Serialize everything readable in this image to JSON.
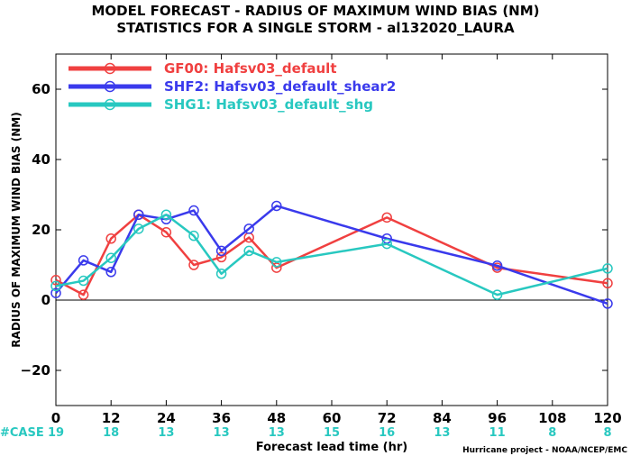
{
  "chart_data": {
    "type": "line",
    "title": "MODEL FORECAST - RADIUS OF MAXIMUM WIND BIAS (NM)",
    "subtitle": "STATISTICS FOR A SINGLE STORM - al132020_LAURA",
    "xlabel": "Forecast lead time (hr)",
    "ylabel": "RADIUS OF MAXIMUM WIND BIAS (NM)",
    "xlim": [
      0,
      120
    ],
    "ylim": [
      -30,
      70
    ],
    "xticks": [
      0,
      12,
      24,
      36,
      48,
      60,
      72,
      84,
      96,
      108,
      120
    ],
    "yticks": [
      -20,
      0,
      20,
      40,
      60
    ],
    "zero_line": true,
    "legend_position": "top-left",
    "series": [
      {
        "name": "GF00: Hafsv03_default",
        "color": "#f04040",
        "x": [
          0,
          6,
          12,
          18,
          24,
          30,
          36,
          42,
          48,
          72,
          96,
          120
        ],
        "y": [
          5.7,
          1.5,
          17.5,
          24.3,
          19.3,
          10.0,
          12.2,
          17.8,
          9.2,
          23.5,
          9.2,
          4.8
        ]
      },
      {
        "name": "SHF2: Hafsv03_default_shear2",
        "color": "#3a3aec",
        "x": [
          0,
          6,
          12,
          18,
          24,
          30,
          36,
          42,
          48,
          72,
          96,
          120
        ],
        "y": [
          2.0,
          11.3,
          8.0,
          24.3,
          23.0,
          25.5,
          14.0,
          20.3,
          26.8,
          17.5,
          9.8,
          -1.0
        ]
      },
      {
        "name": "SHG1: Hafsv03_default_shg",
        "color": "#28c8c0",
        "x": [
          0,
          6,
          12,
          18,
          24,
          30,
          36,
          42,
          48,
          72,
          96,
          120
        ],
        "y": [
          4.0,
          5.5,
          12.0,
          20.3,
          24.3,
          18.3,
          7.5,
          14.0,
          10.8,
          16.0,
          1.5,
          9.0
        ]
      }
    ],
    "case_label": "#CASE",
    "case_color": "#28c8c0",
    "cases": [
      {
        "x": 0,
        "n": "19"
      },
      {
        "x": 12,
        "n": "18"
      },
      {
        "x": 24,
        "n": "13"
      },
      {
        "x": 36,
        "n": "13"
      },
      {
        "x": 48,
        "n": "13"
      },
      {
        "x": 60,
        "n": "15"
      },
      {
        "x": 72,
        "n": "16"
      },
      {
        "x": 84,
        "n": "13"
      },
      {
        "x": 96,
        "n": "11"
      },
      {
        "x": 108,
        "n": "8"
      },
      {
        "x": 120,
        "n": "8"
      }
    ],
    "credit": "Hurricane project - NOAA/NCEP/EMC"
  }
}
